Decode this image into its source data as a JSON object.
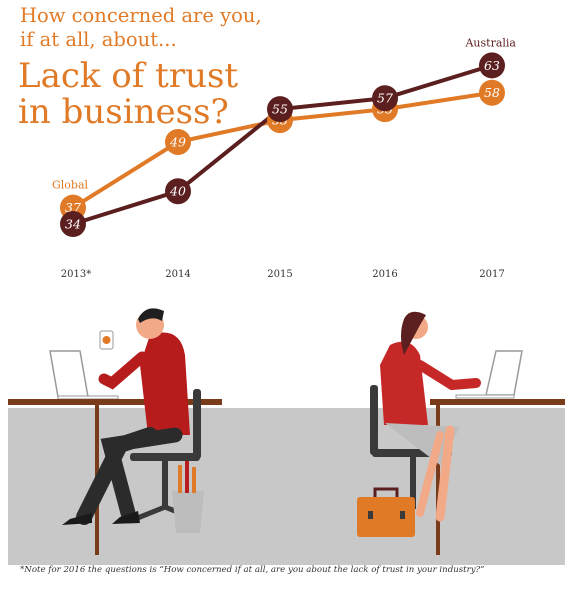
{
  "header": {
    "subtitle_line1": "How concerned are you,",
    "subtitle_line2": "if at all, about...",
    "title_line1": "Lack of trust",
    "title_line2": "in business?"
  },
  "chart_data": {
    "type": "line",
    "x": [
      "2013*",
      "2014",
      "2015",
      "2016",
      "2017"
    ],
    "series": [
      {
        "name": "Global",
        "color": "#e07a26",
        "values": [
          37,
          49,
          53,
          55,
          58
        ]
      },
      {
        "name": "Australia",
        "color": "#5c1f1f",
        "values": [
          34,
          40,
          55,
          57,
          63
        ]
      }
    ],
    "xlabel": "",
    "ylabel": "",
    "grid": false
  },
  "footnote": "*Note for 2016 the questions is “How concerned if at all, are you about the lack of trust in your industry?”",
  "colors": {
    "orange": "#e07a26",
    "maroon": "#5c1f1f",
    "floor": "#c8c8c8",
    "desk": "#7a3b1a"
  }
}
